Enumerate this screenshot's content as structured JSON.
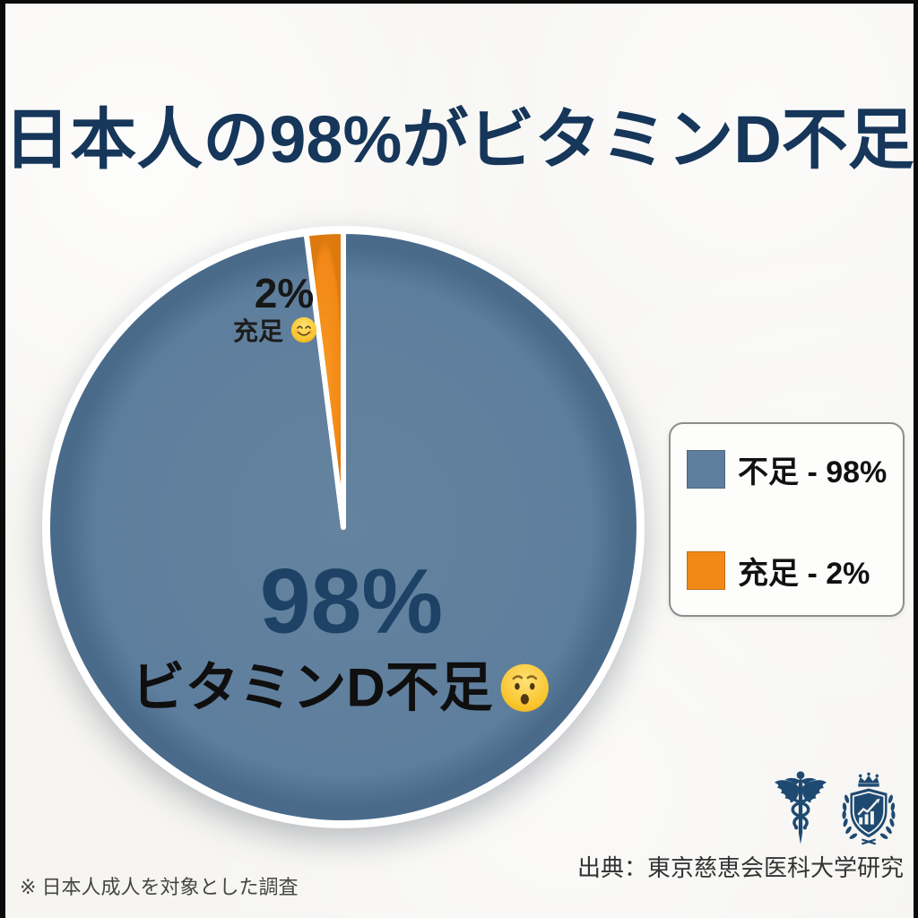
{
  "title": "日本人の98%がビタミンD不足",
  "chart_data": {
    "type": "pie",
    "title": "日本人の98%がビタミンD不足",
    "unit": "%",
    "start_at": "12-oclock",
    "clockwise": true,
    "separator_color": "#ffffff",
    "slices": [
      {
        "name": "deficient",
        "label": "不足",
        "value": 98,
        "color": "#5e7e9d",
        "color_center": "#64839f",
        "color_edge": "#4a6a8a"
      },
      {
        "name": "sufficient",
        "label": "充足",
        "value": 2,
        "color": "#f18818",
        "color_center": "#f8971f",
        "color_edge": "#dd7a0d"
      }
    ],
    "legend_position": "right",
    "annotations": [
      "2% 充足",
      "98% ビタミンD不足"
    ]
  },
  "pie_labels": {
    "small_value": "2%",
    "small_text": "充足",
    "small_emoji": "smiling-face-emoji",
    "center_value": "98%",
    "center_text": "ビタミンD不足",
    "center_emoji": "worried-face-emoji"
  },
  "legend": {
    "items": [
      {
        "label": "不足 - 98%",
        "color": "#5e7e9d"
      },
      {
        "label": "充足 - 2%",
        "color": "#f18818"
      }
    ]
  },
  "footer": {
    "source": "出典：東京慈恵会医科大学研究",
    "note": "※ 日本人成人を対象とした調査",
    "icons": [
      "caduceus-icon",
      "medical-crest-icon"
    ]
  },
  "colors": {
    "background": "#f6f5f2",
    "frame": "#0b0b0b",
    "title": "#16365a",
    "center_value": "#1d4266",
    "deficient": "#5e7e9d",
    "sufficient": "#f18818",
    "icon_navy": "#1e4a72",
    "source_text": "#333333",
    "note_text": "#454545"
  }
}
